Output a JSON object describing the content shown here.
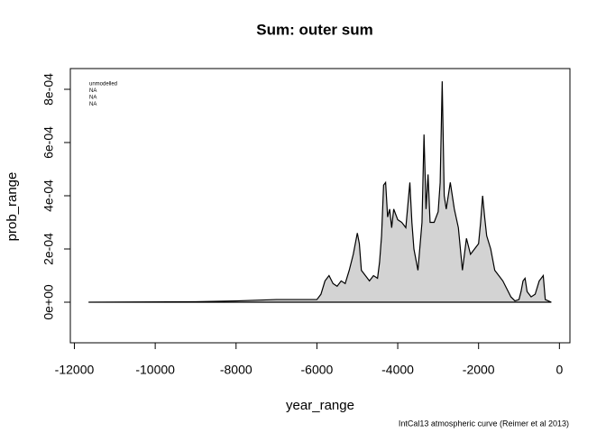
{
  "chart_data": {
    "type": "area",
    "title": "Sum:  outer sum",
    "x_label": "year_range",
    "y_label": "prob_range",
    "annotations": [
      "unmodelled",
      "NA",
      "NA",
      "NA"
    ],
    "caption": "IntCal13 atmospheric curve (Reimer et al 2013)",
    "fill_color": "#d3d3d3",
    "line_color": "#000000",
    "x": [
      -11650,
      -9000,
      -8000,
      -7000,
      -6000,
      -5900,
      -5800,
      -5700,
      -5600,
      -5500,
      -5400,
      -5300,
      -5200,
      -5100,
      -5000,
      -4950,
      -4900,
      -4800,
      -4700,
      -4600,
      -4500,
      -4450,
      -4400,
      -4350,
      -4300,
      -4250,
      -4200,
      -4150,
      -4100,
      -4000,
      -3900,
      -3800,
      -3700,
      -3650,
      -3600,
      -3500,
      -3400,
      -3350,
      -3300,
      -3250,
      -3200,
      -3100,
      -3000,
      -2950,
      -2900,
      -2850,
      -2800,
      -2700,
      -2600,
      -2500,
      -2400,
      -2300,
      -2200,
      -2100,
      -2000,
      -1950,
      -1900,
      -1850,
      -1800,
      -1700,
      -1600,
      -1500,
      -1400,
      -1300,
      -1200,
      -1100,
      -1000,
      -950,
      -900,
      -850,
      -800,
      -700,
      -600,
      -500,
      -450,
      -400,
      -350,
      -200
    ],
    "y": [
      0,
      2e-06,
      5e-06,
      1e-05,
      1e-05,
      3e-05,
      8e-05,
      0.0001,
      7e-05,
      6e-05,
      8e-05,
      7e-05,
      0.00012,
      0.00018,
      0.00026,
      0.00022,
      0.00012,
      0.0001,
      8e-05,
      0.0001,
      9e-05,
      0.00015,
      0.00025,
      0.00044,
      0.00045,
      0.00032,
      0.00035,
      0.00028,
      0.00035,
      0.00031,
      0.0003,
      0.00028,
      0.00045,
      0.0003,
      0.0002,
      0.00012,
      0.0003,
      0.00063,
      0.00035,
      0.00048,
      0.0003,
      0.0003,
      0.00034,
      0.00045,
      0.00083,
      0.0004,
      0.00035,
      0.00045,
      0.00035,
      0.00028,
      0.00012,
      0.00024,
      0.00018,
      0.0002,
      0.00022,
      0.0003,
      0.0004,
      0.00032,
      0.00025,
      0.0002,
      0.00012,
      0.0001,
      8e-05,
      5e-05,
      2e-05,
      5e-06,
      1e-05,
      4e-05,
      8e-05,
      9e-05,
      4e-05,
      2e-05,
      3e-05,
      8e-05,
      9e-05,
      0.0001,
      1e-05,
      0
    ],
    "xlim": [
      -12100,
      260
    ],
    "ylim": [
      -0.0001525,
      0.000878
    ],
    "xticks": [
      -12000,
      -10000,
      -8000,
      -6000,
      -4000,
      -2000,
      0
    ],
    "yticks": [
      {
        "value": 0,
        "label": "0e+00"
      },
      {
        "value": 0.0002,
        "label": "2e-04"
      },
      {
        "value": 0.0004,
        "label": "4e-04"
      },
      {
        "value": 0.0006,
        "label": "6e-04"
      },
      {
        "value": 0.0008,
        "label": "8e-04"
      }
    ]
  }
}
